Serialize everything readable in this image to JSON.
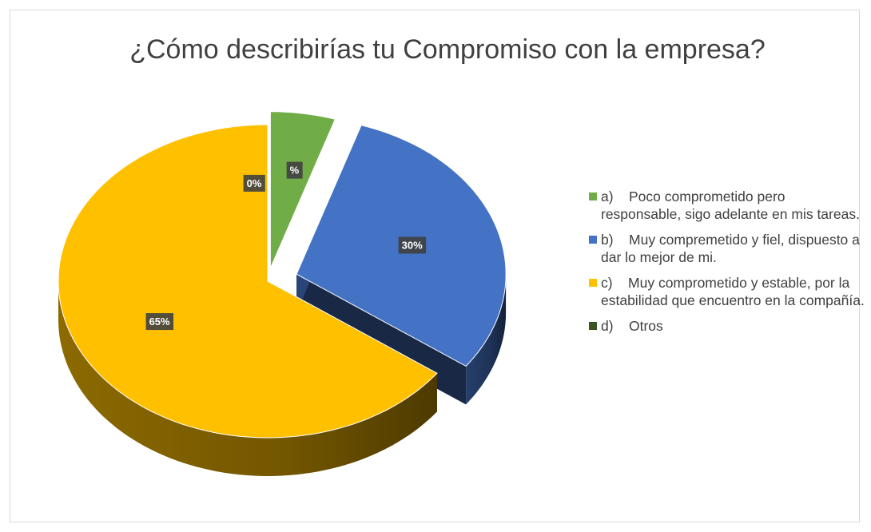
{
  "chart_data": {
    "type": "pie3d",
    "title": "¿Cómo describirías tu Compromiso con la empresa?",
    "categories": [
      "a)    Poco comprometido pero responsable, sigo adelante en mis tareas.",
      "b)    Muy compremetido y fiel, dispuesto a dar lo mejor de mi.",
      "c)    Muy comprometido y estable, por la estabilidad que encuentro en la compañía.",
      "d)    Otros"
    ],
    "values": [
      5,
      30,
      65,
      0
    ],
    "value_labels": [
      "%",
      "30%",
      "65%",
      "0%"
    ],
    "colors": [
      "#70ad47",
      "#4472c4",
      "#ffc000",
      "#375623"
    ],
    "legend": "right"
  }
}
